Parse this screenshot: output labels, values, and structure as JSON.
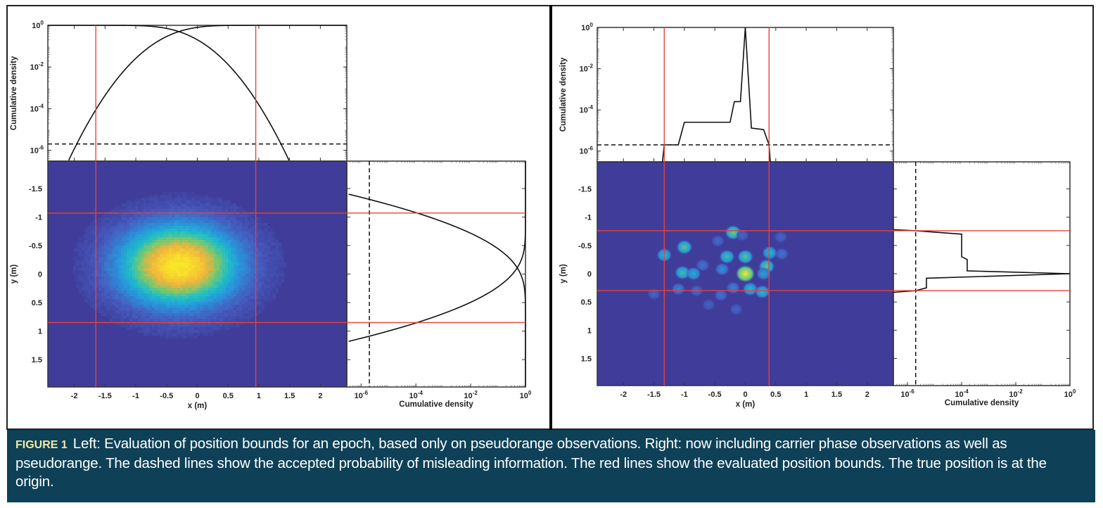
{
  "caption": {
    "label": "FIGURE 1",
    "text": "Left: Evaluation of position bounds for an epoch, based only on pseudorange observations. Right: now including carrier phase observations as well as pseudorange. The dashed lines show the accepted probability of misleading information. The red lines show the evaluated position bounds. The true position is at the origin."
  },
  "colors": {
    "background_heatmap": "#3f3d99",
    "bound_line": "#e8413c",
    "caption_bg": "#0e4157",
    "caption_label": "#f2e8a2"
  },
  "chart_data": [
    {
      "name": "left",
      "description": "Pseudorange only",
      "type": "heatmap",
      "xlabel": "x (m)",
      "ylabel": "y (m)",
      "xlim": [
        -2.43,
        2.43
      ],
      "ylim": [
        -1.98,
        1.98
      ],
      "y_reversed": true,
      "xticks": [
        -2,
        -1.5,
        -1,
        -0.5,
        0,
        0.5,
        1,
        1.5,
        2
      ],
      "xtick_labels": [
        "-2",
        "-1.5",
        "-1",
        "-0.5",
        "0",
        "0.5",
        "1",
        "1.5",
        "2"
      ],
      "yticks": [
        -1.5,
        -1,
        -0.5,
        0,
        0.5,
        1,
        1.5
      ],
      "ytick_labels": [
        "-1.5",
        "-1",
        "-0.5",
        "0",
        "0.5",
        "1",
        "1.5"
      ],
      "density_peak": {
        "x": -0.3,
        "y": -0.15,
        "sx": 0.75,
        "sy": 0.55
      },
      "bounds": {
        "x": [
          -1.65,
          0.95
        ],
        "y": [
          -1.07,
          0.85
        ]
      },
      "pmi": 2e-06,
      "top_cdf": {
        "ylabel": "Cumulative density",
        "yscale": "log",
        "ylim": [
          3e-07,
          1
        ],
        "yticks": [
          1e-06,
          0.0001,
          0.01,
          1
        ],
        "ytick_labels": [
          "10^-6",
          "10^-4",
          "10^-2",
          "10^0"
        ],
        "curve": "gaussian",
        "mean": -0.3,
        "sigma": 0.36
      },
      "side_cdf": {
        "xlabel": "Cumulative density",
        "xscale": "log",
        "xlim": [
          3e-07,
          1
        ],
        "xticks": [
          1e-06,
          0.0001,
          0.01,
          1
        ],
        "xtick_labels": [
          "10^-6",
          "10^-4",
          "10^-2",
          "10^0"
        ],
        "curve": "gaussian",
        "mean": -0.11,
        "sigma": 0.26
      }
    },
    {
      "name": "right",
      "description": "Including carrier phase",
      "type": "heatmap",
      "xlabel": "x (m)",
      "ylabel": "y (m)",
      "xlim": [
        -2.43,
        2.43
      ],
      "ylim": [
        -1.98,
        1.98
      ],
      "y_reversed": true,
      "xticks": [
        -2,
        -1.5,
        -1,
        -0.5,
        0,
        0.5,
        1,
        1.5,
        2
      ],
      "xtick_labels": [
        "-2",
        "-1.5",
        "-1",
        "-0.5",
        "0",
        "0.5",
        "1",
        "1.5",
        "2"
      ],
      "yticks": [
        -1.5,
        -1,
        -0.5,
        0,
        0.5,
        1,
        1.5
      ],
      "ytick_labels": [
        "-1.5",
        "-1",
        "-0.5",
        "0",
        "0.5",
        "1",
        "1.5"
      ],
      "blobs": [
        {
          "x": 0.0,
          "y": 0.0,
          "v": 1.0
        },
        {
          "x": -0.2,
          "y": -0.73,
          "v": 0.65
        },
        {
          "x": -1.0,
          "y": -0.47,
          "v": 0.6
        },
        {
          "x": -1.33,
          "y": -0.33,
          "v": 0.5
        },
        {
          "x": -0.3,
          "y": -0.3,
          "v": 0.55
        },
        {
          "x": 0.0,
          "y": -0.3,
          "v": 0.6
        },
        {
          "x": 0.4,
          "y": -0.37,
          "v": 0.5
        },
        {
          "x": 0.35,
          "y": -0.13,
          "v": 0.62
        },
        {
          "x": -1.03,
          "y": -0.02,
          "v": 0.55
        },
        {
          "x": -0.85,
          "y": 0.0,
          "v": 0.45
        },
        {
          "x": -0.38,
          "y": -0.08,
          "v": 0.35
        },
        {
          "x": 0.3,
          "y": 0.0,
          "v": 0.4
        },
        {
          "x": 0.08,
          "y": 0.27,
          "v": 0.5
        },
        {
          "x": 0.28,
          "y": 0.32,
          "v": 0.5
        },
        {
          "x": -1.1,
          "y": 0.27,
          "v": 0.3
        },
        {
          "x": -0.4,
          "y": 0.38,
          "v": 0.25
        },
        {
          "x": -0.15,
          "y": 0.63,
          "v": 0.2
        },
        {
          "x": -0.7,
          "y": -0.15,
          "v": 0.25
        },
        {
          "x": 0.58,
          "y": -0.65,
          "v": 0.2
        },
        {
          "x": 0.6,
          "y": -0.35,
          "v": 0.25
        },
        {
          "x": -0.45,
          "y": -0.58,
          "v": 0.22
        },
        {
          "x": -0.05,
          "y": -0.68,
          "v": 0.2
        },
        {
          "x": -0.8,
          "y": 0.3,
          "v": 0.22
        },
        {
          "x": -0.2,
          "y": 0.25,
          "v": 0.3
        },
        {
          "x": -0.6,
          "y": 0.55,
          "v": 0.18
        },
        {
          "x": -1.5,
          "y": 0.36,
          "v": 0.2
        }
      ],
      "bounds": {
        "x": [
          -1.33,
          0.39
        ],
        "y": [
          -0.76,
          0.3
        ]
      },
      "pmi": 2e-06,
      "top_cdf": {
        "ylabel": "Cumulative density",
        "yscale": "log",
        "ylim": [
          3e-07,
          1
        ],
        "yticks": [
          1e-06,
          0.0001,
          0.01,
          1
        ],
        "ytick_labels": [
          "10^-6",
          "10^-4",
          "10^-2",
          "10^0"
        ],
        "curve": "stepped",
        "left_steps": [
          [
            -1.36,
            3e-07
          ],
          [
            -1.33,
            2e-06
          ],
          [
            -1.1,
            2e-06
          ],
          [
            -1.0,
            2.5e-05
          ],
          [
            -0.25,
            2.5e-05
          ],
          [
            -0.18,
            0.00025
          ],
          [
            -0.08,
            0.00025
          ],
          [
            0.0,
            1
          ]
        ],
        "right_steps": [
          [
            0.0,
            1
          ],
          [
            0.1,
            1.3e-05
          ],
          [
            0.3,
            1.1e-05
          ],
          [
            0.39,
            2e-06
          ],
          [
            0.41,
            3e-07
          ]
        ]
      },
      "side_cdf": {
        "xlabel": "Cumulative density",
        "xscale": "log",
        "xlim": [
          3e-07,
          1
        ],
        "xticks": [
          1e-06,
          0.0001,
          0.01,
          1
        ],
        "xtick_labels": [
          "10^-6",
          "10^-4",
          "10^-2",
          "10^0"
        ],
        "curve": "stepped",
        "top_steps": [
          [
            -0.78,
            3e-07
          ],
          [
            -0.76,
            2e-06
          ],
          [
            -0.7,
            0.0001
          ],
          [
            -0.3,
            0.0001
          ],
          [
            -0.25,
            0.00016
          ],
          [
            -0.05,
            0.00016
          ],
          [
            0.0,
            1
          ]
        ],
        "bottom_steps": [
          [
            0.0,
            1
          ],
          [
            0.08,
            5e-06
          ],
          [
            0.25,
            5e-06
          ],
          [
            0.3,
            2e-06
          ],
          [
            0.33,
            3e-07
          ]
        ]
      }
    }
  ]
}
